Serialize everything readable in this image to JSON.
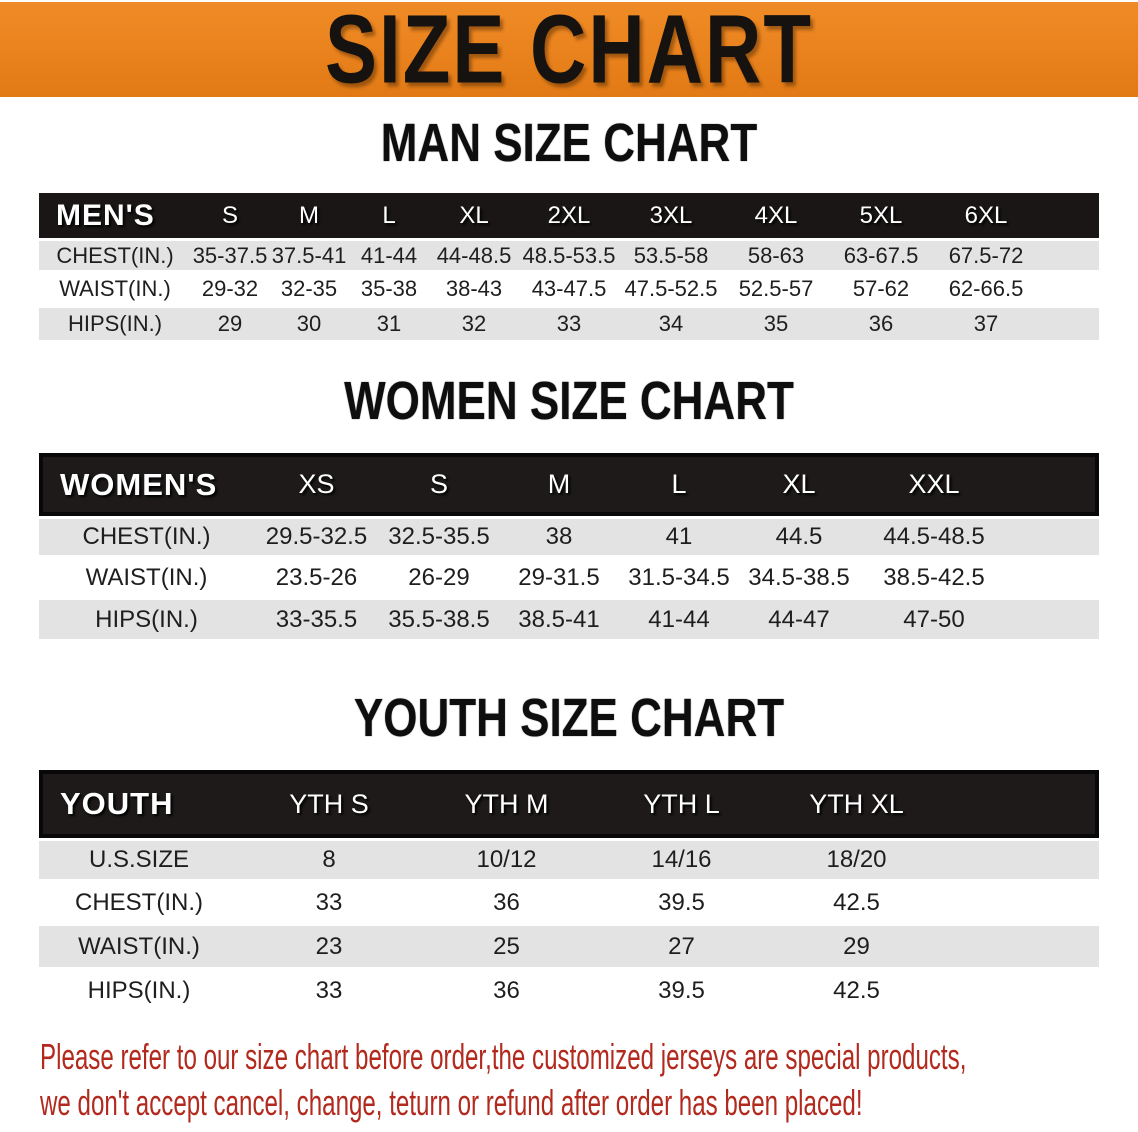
{
  "banner": {
    "title": "SIZE CHART"
  },
  "colors": {
    "banner_orange": "#ea831e",
    "header_bar": "#191615",
    "row_shade": "#e3e3e4",
    "disclaimer_red": "#b2291e"
  },
  "sections": [
    {
      "heading": "MAN SIZE CHART",
      "table": {
        "header_label": "MEN'S",
        "columns": [
          "S",
          "M",
          "L",
          "XL",
          "2XL",
          "3XL",
          "4XL",
          "5XL",
          "6XL"
        ],
        "rows": [
          {
            "label": "CHEST(IN.)",
            "values": [
              "35-37.5",
              "37.5-41",
              "41-44",
              "44-48.5",
              "48.5-53.5",
              "53.5-58",
              "58-63",
              "63-67.5",
              "67.5-72"
            ]
          },
          {
            "label": "WAIST(IN.)",
            "values": [
              "29-32",
              "32-35",
              "35-38",
              "38-43",
              "43-47.5",
              "47.5-52.5",
              "52.5-57",
              "57-62",
              "62-66.5"
            ]
          },
          {
            "label": "HIPS(IN.)",
            "values": [
              "29",
              "30",
              "31",
              "32",
              "33",
              "34",
              "35",
              "36",
              "37"
            ]
          }
        ]
      }
    },
    {
      "heading": "WOMEN SIZE CHART",
      "table": {
        "header_label": "WOMEN'S",
        "columns": [
          "XS",
          "S",
          "M",
          "L",
          "XL",
          "XXL"
        ],
        "rows": [
          {
            "label": "CHEST(IN.)",
            "values": [
              "29.5-32.5",
              "32.5-35.5",
              "38",
              "41",
              "44.5",
              "44.5-48.5"
            ]
          },
          {
            "label": "WAIST(IN.)",
            "values": [
              "23.5-26",
              "26-29",
              "29-31.5",
              "31.5-34.5",
              "34.5-38.5",
              "38.5-42.5"
            ]
          },
          {
            "label": "HIPS(IN.)",
            "values": [
              "33-35.5",
              "35.5-38.5",
              "38.5-41",
              "41-44",
              "44-47",
              "47-50"
            ]
          }
        ]
      }
    },
    {
      "heading": "YOUTH SIZE CHART",
      "table": {
        "header_label": "YOUTH",
        "columns": [
          "YTH S",
          "YTH M",
          "YTH L",
          "YTH XL"
        ],
        "rows": [
          {
            "label": "U.S.SIZE",
            "values": [
              "8",
              "10/12",
              "14/16",
              "18/20"
            ]
          },
          {
            "label": "CHEST(IN.)",
            "values": [
              "33",
              "36",
              "39.5",
              "42.5"
            ]
          },
          {
            "label": "WAIST(IN.)",
            "values": [
              "23",
              "25",
              "27",
              "29"
            ]
          },
          {
            "label": "HIPS(IN.)",
            "values": [
              "33",
              "36",
              "39.5",
              "42.5"
            ]
          }
        ]
      }
    }
  ],
  "disclaimer": {
    "line1": "Please refer to our size chart before order,the customized jerseys are special products,",
    "line2": "we don't accept cancel, change, teturn or refund after order has been placed!"
  }
}
